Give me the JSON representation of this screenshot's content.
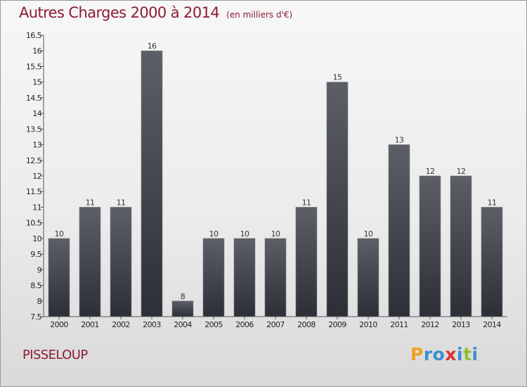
{
  "header": {
    "title": "Autres Charges 2000 à 2014",
    "subtitle": "(en milliers d'€)"
  },
  "footer": {
    "commune": "PISSELOUP",
    "logo": "Proxiti"
  },
  "colors": {
    "title": "#8d1b33",
    "bar_top": "#5c6066",
    "bar_bottom": "#2c3036",
    "logo_letters": [
      "#f0a020",
      "#3a8fd0",
      "#3a8fd0",
      "#e03030",
      "#3a8fd0",
      "#90c030",
      "#3a8fd0"
    ]
  },
  "chart_data": {
    "type": "bar",
    "title": "Autres Charges 2000 à 2014",
    "subtitle": "(en milliers d'€)",
    "categories": [
      "2000",
      "2001",
      "2002",
      "2003",
      "2004",
      "2005",
      "2006",
      "2007",
      "2008",
      "2009",
      "2010",
      "2011",
      "2012",
      "2013",
      "2014"
    ],
    "values": [
      10,
      11,
      11,
      16,
      8,
      10,
      10,
      10,
      11,
      15,
      10,
      13,
      12,
      12,
      11
    ],
    "data_labels": [
      "10",
      "11",
      "11",
      "16",
      "8",
      "10",
      "10",
      "10",
      "11",
      "15",
      "10",
      "13",
      "12",
      "12",
      "11"
    ],
    "yticks": [
      "7.5",
      "8",
      "8.5",
      "9",
      "9.5",
      "10",
      "10.5",
      "11",
      "11.5",
      "12",
      "12.5",
      "13",
      "13.5",
      "14",
      "14.5",
      "15",
      "15.5",
      "16",
      "16.5"
    ],
    "ylim": [
      7.5,
      16.5
    ],
    "xlabel": "",
    "ylabel": "",
    "grid": false,
    "legend": "none"
  }
}
